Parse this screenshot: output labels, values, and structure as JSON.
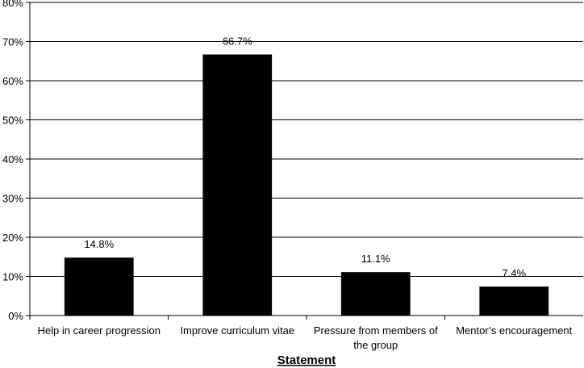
{
  "chart_data": {
    "type": "bar",
    "categories": [
      [
        "Help in career progression"
      ],
      [
        "Improve curriculum vitae"
      ],
      [
        "Pressure from members of",
        "the group"
      ],
      [
        "Mentor’s encouragement"
      ]
    ],
    "values": [
      14.8,
      66.7,
      11.1,
      7.4
    ],
    "data_labels": [
      "14.8%",
      "66.7%",
      "11.1%",
      "7.4%"
    ],
    "title": "",
    "xlabel": "Statement",
    "ylabel": "",
    "ylim": [
      0,
      80
    ],
    "yticks": [
      0,
      10,
      20,
      30,
      40,
      50,
      60,
      70,
      80
    ],
    "ytick_labels": [
      "0%",
      "10%",
      "20%",
      "30%",
      "40%",
      "50%",
      "60%",
      "70%",
      "80%"
    ],
    "grid": true,
    "legend": "none",
    "colors": {
      "bar": "#000000",
      "grid": "#000000",
      "axis": "#000000"
    }
  }
}
